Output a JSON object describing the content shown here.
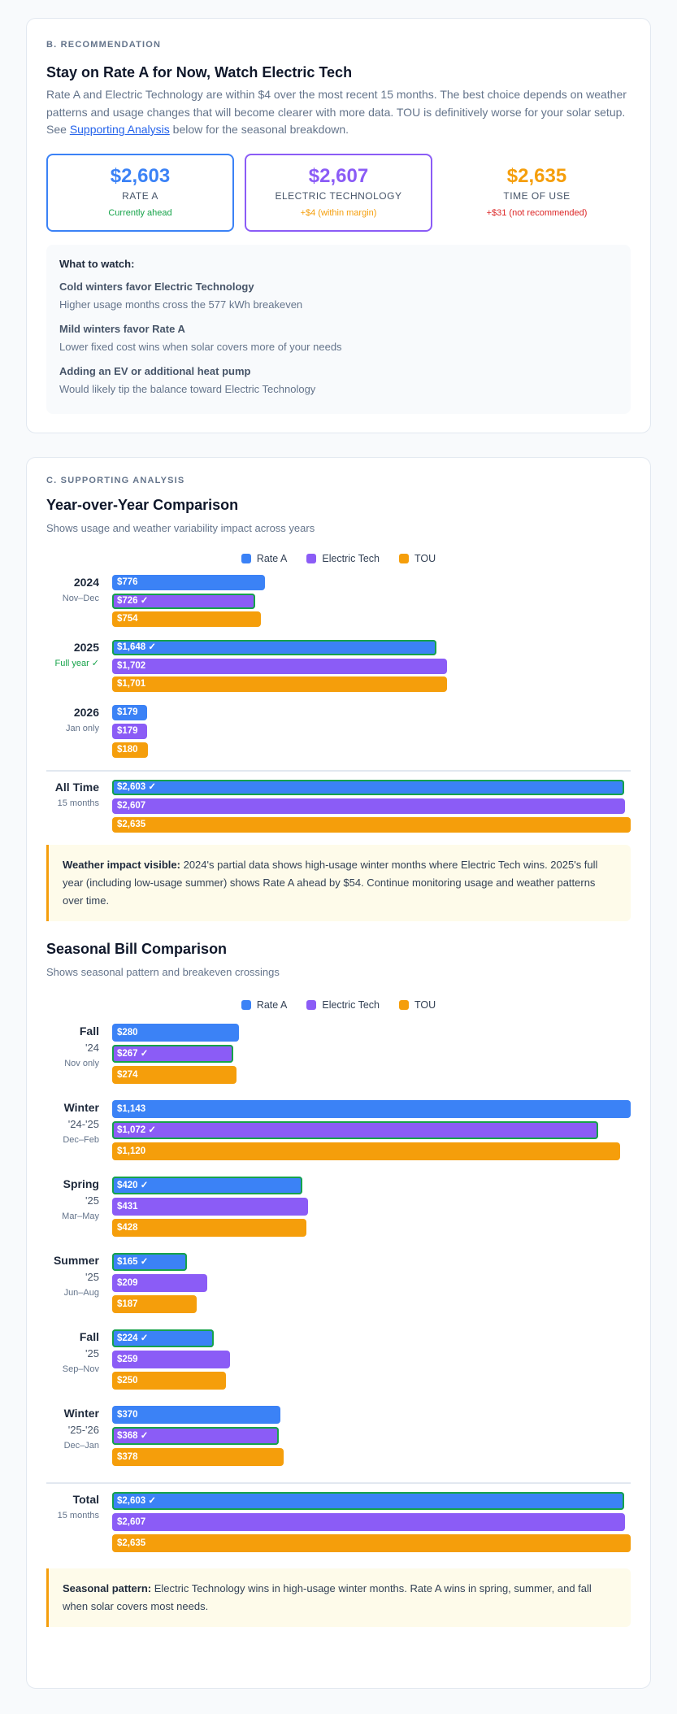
{
  "recommendation": {
    "section_label": "B. Recommendation",
    "title": "Stay on Rate A for Now, Watch Electric Tech",
    "para_before": "Rate A and Electric Technology are within $4 over the most recent 15 months. The best choice depends on weather patterns and usage changes that will become clearer with more data. TOU is definitively worse for your solar setup. See ",
    "link": "Supporting Analysis",
    "para_after": " below for the seasonal breakdown.",
    "options": [
      {
        "amount": "$2,603",
        "label": "Rate A",
        "note": "Currently ahead",
        "color": "#3b82f6",
        "note_color": "#16a34a"
      },
      {
        "amount": "$2,607",
        "label": "Electric Technology",
        "note": "+$4 (within margin)",
        "color": "#8b5cf6",
        "note_color": "#f59e0b"
      },
      {
        "amount": "$2,635",
        "label": "Time of Use",
        "note": "+$31 (not recommended)",
        "color": "#f59e0b",
        "note_color": "#dc2626"
      }
    ],
    "watch": {
      "title": "What to watch:",
      "items": [
        {
          "title": "Cold winters favor Electric Technology",
          "desc": "Higher usage months cross the 577 kWh breakeven"
        },
        {
          "title": "Mild winters favor Rate A",
          "desc": "Lower fixed cost wins when solar covers more of your needs"
        },
        {
          "title": "Adding an EV or additional heat pump",
          "desc": "Would likely tip the balance toward Electric Technology"
        }
      ]
    }
  },
  "analysis": {
    "section_label": "C. Supporting Analysis",
    "yoy_callout_bold": "Weather impact visible:",
    "yoy_callout": " 2024's partial data shows high-usage winter months where Electric Tech wins. 2025's full year (including low-usage summer) shows Rate A ahead by $54. Continue monitoring usage and weather patterns over time.",
    "seasonal_callout_bold": "Seasonal pattern:",
    "seasonal_callout": " Electric Technology wins in high-usage winter months. Rate A wins in spring, summer, and fall when solar covers most needs."
  },
  "chart_data": [
    {
      "type": "bar",
      "orientation": "horizontal",
      "title": "Year-over-Year Comparison",
      "subtitle": "Shows usage and weather variability impact across years",
      "legend": "top-center",
      "series": [
        {
          "name": "Rate A",
          "color": "#3b82f6"
        },
        {
          "name": "Electric Tech",
          "color": "#8b5cf6"
        },
        {
          "name": "TOU",
          "color": "#f59e0b"
        }
      ],
      "win_mark": "✓",
      "xlim": [
        0,
        2635
      ],
      "groups": [
        {
          "name": "2024",
          "period": "Nov–Dec",
          "values": [
            776,
            726,
            754
          ],
          "winner": 1
        },
        {
          "name": "2025",
          "period": "Full year ✓",
          "period_highlight": true,
          "values": [
            1648,
            1702,
            1701
          ],
          "winner": 0
        },
        {
          "name": "2026",
          "period": "Jan only",
          "values": [
            179,
            179,
            180
          ],
          "winner": null
        }
      ],
      "total": {
        "name": "All Time",
        "period": "15 months",
        "values": [
          2603,
          2607,
          2635
        ],
        "winner": 0
      },
      "total_xlim": [
        0,
        2635
      ]
    },
    {
      "type": "bar",
      "orientation": "horizontal",
      "title": "Seasonal Bill Comparison",
      "subtitle": "Shows seasonal pattern and breakeven crossings",
      "legend": "top-center",
      "series": [
        {
          "name": "Rate A",
          "color": "#3b82f6"
        },
        {
          "name": "Electric Tech",
          "color": "#8b5cf6"
        },
        {
          "name": "TOU",
          "color": "#f59e0b"
        }
      ],
      "win_mark": "✓",
      "xlim": [
        0,
        1143
      ],
      "groups": [
        {
          "name": "Fall",
          "year": "'24",
          "period": "Nov only",
          "values": [
            280,
            267,
            274
          ],
          "winner": 1
        },
        {
          "name": "Winter",
          "year": "'24-'25",
          "period": "Dec–Feb",
          "values": [
            1143,
            1072,
            1120
          ],
          "winner": 1
        },
        {
          "name": "Spring",
          "year": "'25",
          "period": "Mar–May",
          "values": [
            420,
            431,
            428
          ],
          "winner": 0
        },
        {
          "name": "Summer",
          "year": "'25",
          "period": "Jun–Aug",
          "values": [
            165,
            209,
            187
          ],
          "winner": 0
        },
        {
          "name": "Fall",
          "year": "'25",
          "period": "Sep–Nov",
          "values": [
            224,
            259,
            250
          ],
          "winner": 0
        },
        {
          "name": "Winter",
          "year": "'25-'26",
          "period": "Dec–Jan",
          "values": [
            370,
            368,
            378
          ],
          "winner": 1
        }
      ],
      "total": {
        "name": "Total",
        "period": "15 months",
        "values": [
          2603,
          2607,
          2635
        ],
        "winner": 0
      },
      "total_xlim": [
        0,
        2635
      ]
    }
  ]
}
